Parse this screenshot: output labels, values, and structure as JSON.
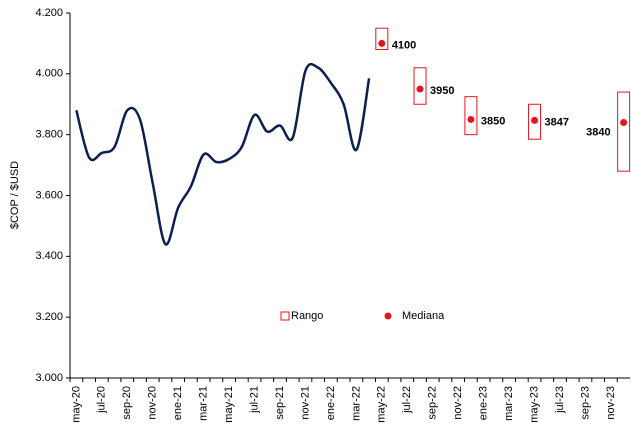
{
  "chart_data": {
    "type": "line",
    "ylabel": "$COP / $USD",
    "categories": [
      "may-20",
      null,
      "jul-20",
      null,
      "sep-20",
      null,
      "nov-20",
      null,
      "ene-21",
      null,
      "mar-21",
      null,
      "may-21",
      null,
      "jul-21",
      null,
      "sep-21",
      null,
      "nov-21",
      null,
      "ene-22",
      null,
      "mar-22",
      null,
      "may-22",
      null,
      "jul-22",
      null,
      "sep-22",
      null,
      "nov-22",
      null,
      "ene-23",
      null,
      "mar-23",
      null,
      "may-23",
      null,
      "jul-23",
      null,
      "sep-23",
      null,
      "nov-23",
      null
    ],
    "ylim": [
      3000,
      4200
    ],
    "yticks": [
      {
        "value": 3000,
        "label": "3.000"
      },
      {
        "value": 3200,
        "label": "3.200"
      },
      {
        "value": 3400,
        "label": "3.400"
      },
      {
        "value": 3600,
        "label": "3.600"
      },
      {
        "value": 3800,
        "label": "3.800"
      },
      {
        "value": 4000,
        "label": "4.000"
      },
      {
        "value": 4200,
        "label": "4.200"
      }
    ],
    "line": {
      "color": "#0d1f4f",
      "values": [
        3880,
        3725,
        3740,
        3760,
        3880,
        3850,
        3640,
        3440,
        3560,
        3630,
        3735,
        3710,
        3720,
        3760,
        3865,
        3810,
        3830,
        3790,
        4010,
        4020,
        3970,
        3900,
        3750,
        3985,
        null,
        null,
        null,
        null,
        null,
        null,
        null,
        null,
        null,
        null,
        null,
        null,
        null,
        null,
        null,
        null,
        null,
        null,
        null,
        null
      ]
    },
    "range": {
      "name": "Rango",
      "color": "#e8141c",
      "low": [
        null,
        null,
        null,
        null,
        null,
        null,
        null,
        null,
        null,
        null,
        null,
        null,
        null,
        null,
        null,
        null,
        null,
        null,
        null,
        null,
        null,
        null,
        null,
        null,
        4080,
        null,
        null,
        3900,
        null,
        null,
        null,
        3800,
        null,
        null,
        null,
        null,
        3785,
        null,
        null,
        null,
        null,
        null,
        null,
        3680
      ],
      "high": [
        null,
        null,
        null,
        null,
        null,
        null,
        null,
        null,
        null,
        null,
        null,
        null,
        null,
        null,
        null,
        null,
        null,
        null,
        null,
        null,
        null,
        null,
        null,
        null,
        4150,
        null,
        null,
        4020,
        null,
        null,
        null,
        3925,
        null,
        null,
        null,
        null,
        3900,
        null,
        null,
        null,
        null,
        null,
        null,
        3940
      ]
    },
    "median": {
      "name": "Mediana",
      "color": "#e8141c",
      "values": [
        null,
        null,
        null,
        null,
        null,
        null,
        null,
        null,
        null,
        null,
        null,
        null,
        null,
        null,
        null,
        null,
        null,
        null,
        null,
        null,
        null,
        null,
        null,
        null,
        4100,
        null,
        null,
        3950,
        null,
        null,
        null,
        3850,
        null,
        null,
        null,
        null,
        3847,
        null,
        null,
        null,
        null,
        null,
        null,
        3840
      ]
    }
  }
}
